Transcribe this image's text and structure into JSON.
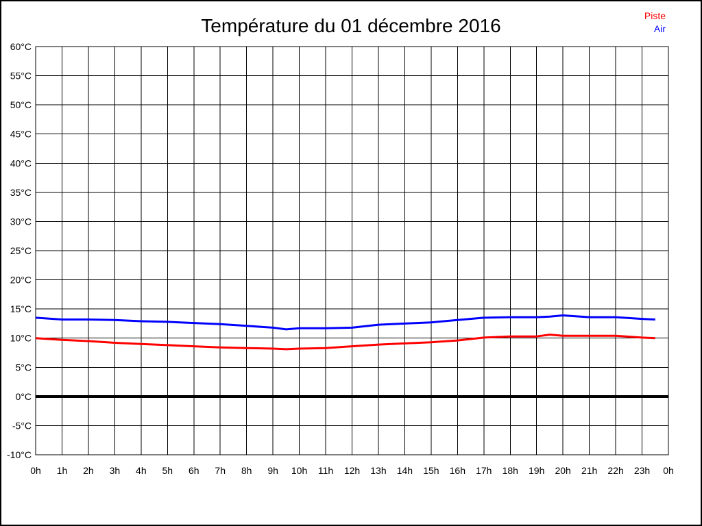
{
  "window": {
    "background": "#ffffff",
    "border_color": "#000000"
  },
  "legend": [
    {
      "label": "Piste",
      "color": "#ff0000"
    },
    {
      "label": "Air",
      "color": "#0000ff"
    }
  ],
  "chart_data": {
    "type": "line",
    "title": "Température du 01 décembre 2016",
    "xlabel": "",
    "ylabel": "",
    "xlim": [
      0,
      24
    ],
    "ylim": [
      -10,
      60
    ],
    "y_tick_step": 5,
    "grid": true,
    "grid_color": "#000000",
    "axis_box": true,
    "zero_line": {
      "value": 0,
      "color": "#000000",
      "width": 4
    },
    "legend_position": "top-right",
    "x_tick_labels": [
      "0h",
      "1h",
      "2h",
      "3h",
      "4h",
      "5h",
      "6h",
      "7h",
      "8h",
      "9h",
      "10h",
      "11h",
      "12h",
      "13h",
      "14h",
      "15h",
      "16h",
      "17h",
      "18h",
      "19h",
      "20h",
      "21h",
      "22h",
      "23h",
      "0h"
    ],
    "y_tick_labels": [
      "60°C",
      "55°C",
      "50°C",
      "45°C",
      "40°C",
      "35°C",
      "30°C",
      "25°C",
      "20°C",
      "15°C",
      "10°C",
      "5°C",
      "0°C",
      "-5°C",
      "-10°C"
    ],
    "x": [
      0,
      1,
      2,
      3,
      4,
      5,
      6,
      7,
      8,
      9,
      9.5,
      10,
      11,
      12,
      13,
      14,
      15,
      16,
      17,
      18,
      19,
      19.5,
      20,
      21,
      22,
      23,
      23.5
    ],
    "series": [
      {
        "name": "Piste",
        "color": "#ff0000",
        "width": 3,
        "values": [
          10.0,
          9.7,
          9.5,
          9.2,
          9.0,
          8.8,
          8.6,
          8.4,
          8.3,
          8.2,
          8.1,
          8.2,
          8.3,
          8.6,
          8.9,
          9.1,
          9.3,
          9.6,
          10.1,
          10.3,
          10.3,
          10.6,
          10.4,
          10.4,
          10.4,
          10.1,
          10.0
        ]
      },
      {
        "name": "Air",
        "color": "#0000ff",
        "width": 3,
        "values": [
          13.5,
          13.2,
          13.2,
          13.1,
          12.9,
          12.8,
          12.6,
          12.4,
          12.1,
          11.8,
          11.5,
          11.7,
          11.7,
          11.8,
          12.3,
          12.5,
          12.7,
          13.1,
          13.5,
          13.6,
          13.6,
          13.7,
          13.9,
          13.6,
          13.6,
          13.3,
          13.2
        ]
      }
    ]
  }
}
